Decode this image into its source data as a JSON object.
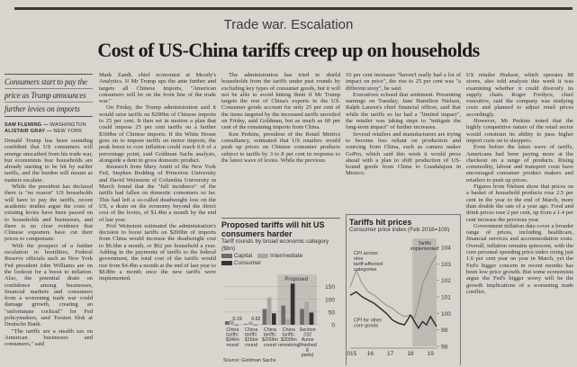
{
  "section": "Trade war. Escalation",
  "headline": "Cost of US-China tariffs creep up on households",
  "standfirst": [
    "Consumers start to pay the",
    "price as Trump announces",
    "further levies on imports"
  ],
  "bylines": [
    {
      "name": "SAM FLEMING",
      "loc": "WASHINGTON"
    },
    {
      "name": "ALISTAIR GRAY",
      "loc": "NEW YORK"
    }
  ],
  "columns": [
    [
      "Donald Trump has been sounding confident that US consumers will emerge unscathed from his trade war, but economists fear households are already starting to be hit by earlier tariffs, and the burden will mount as matters escalate.",
      "While the president has declared there is \"no reason\" US households will have to pay the tariffs, recent academic studies argue the costs of existing levies have been passed on to households and businesses, and there is no clear evidence that Chinese exporters have cut their prices to compensate.",
      "With the prospect of a further escalation in hostilities, Federal Reserve officials such as New York Fed president John Williams are on the lookout for a boost to inflation. Also, the potential drain on confidence among businesses, financial markets and consumers from a worsening trade war could damage growth, creating an \"unfortunate cocktail\" for Fed policymakers, said Torsten Slok at Deutsche Bank.",
      "\"The tariffs are a stealth tax on American businesses and consumers,\" said"
    ],
    [
      "Mark Zandi, chief economist at Moody's Analytics. If Mr Trump ups the ante further and targets all Chinese imports, \"American consumers will be on the front line of the trade war.\"",
      "On Friday, the Trump administration said it would raise tariffs on $200bn of Chinese imports to 25 per cent. It then set in motion a plan that could impose 25 per cent tariffs on a further $300bn of Chinese imports. If the White House goes on to impose tariffs on motor imports, the peak boost to core inflation could reach 0.9 of a percentage point, said Goldman Sachs analysts, alongside a dent in gross domestic product.",
      "Research from Mary Amiti of the New York Fed, Stephen Redding of Princeton University and David Weinstein of Columbia University in March found that the \"full incidence\" of the tariffs had fallen on domestic consumers so far. This had left a so-called deadweight loss on the US, a drain on the economy beyond the direct cost of the levies, of $1.4bn a month by the end of last year.",
      "Prof Weinstein estimated the administration's decision to boost tariffs on $200bn of imports from China would increase the deadweight cost to $6.6bn a month, or $62 per household a year. Adding in the payments of tariffs to the federal government, the total cost of the tariffs would rise from $4.4bn a month at the end of last year to $8.8bn a month once the new tariffs were implemented."
    ],
    [
      "The administration has tried to shield households from the tariffs under past rounds by excluding key types of consumer goods, but it will not be able to avoid hitting them if Mr Trump targets the rest of China's exports to the US. Consumer goods account for only 25 per cent of the items targeted by the increased tariffs unveiled on Friday, said Goldman, but as much as 60 per cent of the remaining imports from China.",
      "Ken Perkins, president of the Retail Metrics consultancy, estimated that US retailers would push up prices on Chinese consumer products subject to tariffs by 3 to 8 per cent in response to the latest wave of levies. While the previous"
    ],
    [
      "10 per cent increases \"haven't really had a lot of impact on price\", the rise to 25 per cent was \"a different story\", he said.",
      "Executives echoed that sentiment. Presenting earnings on Tuesday, Jane Hamilton Nielsen, Ralph Lauren's chief financial officer, said that while the tariffs so far had a \"limited impact\", the retailer was taking steps to \"mitigate the long-term impact\" of further increases.",
      "Several retailers and manufacturers are trying to become less reliant on production and sourcing from China, such as camera maker GoPro, which said this week it would press ahead with a plan to shift production of US-bound goods from China to Guadalajara in Mexico."
    ],
    [
      "US retailer Hudson, which operates 88 stores, also told analysts this week it was examining whether it could diversify its supply chain. Roger Fordyce, chief executive, said the company was studying costs and planned to adjust retail prices accordingly.",
      "However, Mr Perkins noted that the highly competitive nature of the retail sector would constrain its ability to pass higher import costs on to shoppers.",
      "Even before the latest wave of tariffs, Americans had been paying more at the checkout on a range of products. Rising commodity, labour and transport costs have encouraged consumer product makers and retailers to push up prices.",
      "Figures from Nielsen show that prices on a basket of household products rose 2.5 per cent in the year to the end of March, more than double the rate of a year ago. Food and drink prices rose 2 per cent, up from a 1.4 per cent increase the previous year.",
      "Government inflation data cover a broader range of prices, including healthcare, financial services and accommodation costs. Overall, inflation remains quiescent, with the core personal spending price index rising just 1.6 per cent year on year in March, yet the Fed's bigger concern in recent months has been low price growth. But some economists argue the Fed's bigger worry will be the growth implications of a worsening trade conflict."
    ]
  ],
  "chart_data": [
    {
      "type": "bar",
      "title": "Proposed tariffs will hit US consumers harder",
      "subtitle": "Tariff rounds by broad economic category ($bn)",
      "categories": [
        "China tariffs: $34bn round",
        "China tariffs: $16bn round",
        "China tariffs: $200bn round",
        "China tariffs: $300bn remaining",
        "Section 232 Autos (finished & parts)"
      ],
      "series": [
        {
          "name": "Capital",
          "color": "#6d6b68",
          "values": [
            14,
            3,
            62,
            75,
            62
          ]
        },
        {
          "name": "Intermediate",
          "color": "#a9a6a1",
          "values": [
            17,
            12,
            107,
            22,
            90
          ]
        },
        {
          "name": "Consumer",
          "color": "#353432",
          "values": [
            0.19,
            0.52,
            45,
            162,
            48
          ]
        }
      ],
      "data_labels": [
        "0.19",
        "0.52"
      ],
      "shaded_label": "Proposed",
      "ylim": [
        0,
        170
      ],
      "yticks": [
        0,
        50,
        100,
        150
      ],
      "source": "Source: Goldman Sachs"
    },
    {
      "type": "line",
      "title": "Tariffs hit prices",
      "subtitle": "Consumer price index (Feb 2018=100)",
      "shaded_label": "Tariffs implemented",
      "shaded_range": [
        2018.1,
        2019.3
      ],
      "xlim": [
        2015,
        2019.3
      ],
      "xticks": [
        "2015",
        "16",
        "17",
        "18",
        "19"
      ],
      "ylim": [
        98,
        104
      ],
      "yticks": [
        98,
        99,
        100,
        101,
        102,
        103,
        104
      ],
      "series": [
        {
          "name": "CPI across nine tariff-affected categories",
          "color": "#8e8b86",
          "x": [
            2015,
            2015.3,
            2015.6,
            2015.9,
            2016.2,
            2016.5,
            2016.8,
            2017.1,
            2017.4,
            2017.7,
            2018.0,
            2018.2,
            2018.4,
            2018.6,
            2018.8,
            2019.0,
            2019.3
          ],
          "y": [
            101.6,
            102.6,
            101.8,
            101.3,
            101.1,
            100.8,
            100.5,
            100.3,
            100.0,
            99.8,
            99.9,
            99.7,
            100.6,
            101.8,
            102.3,
            102.9,
            103.5
          ]
        },
        {
          "name": "CPI for other core goods",
          "color": "#2a2927",
          "x": [
            2015,
            2015.3,
            2015.6,
            2015.9,
            2016.2,
            2016.5,
            2016.8,
            2017.1,
            2017.4,
            2017.7,
            2018.0,
            2018.2,
            2018.4,
            2018.6,
            2018.8,
            2019.0,
            2019.3
          ],
          "y": [
            101.1,
            101.3,
            101.0,
            100.8,
            100.6,
            100.3,
            100.0,
            99.6,
            99.4,
            99.3,
            99.9,
            99.5,
            99.1,
            99.5,
            99.3,
            99.8,
            99.2
          ]
        }
      ]
    }
  ]
}
